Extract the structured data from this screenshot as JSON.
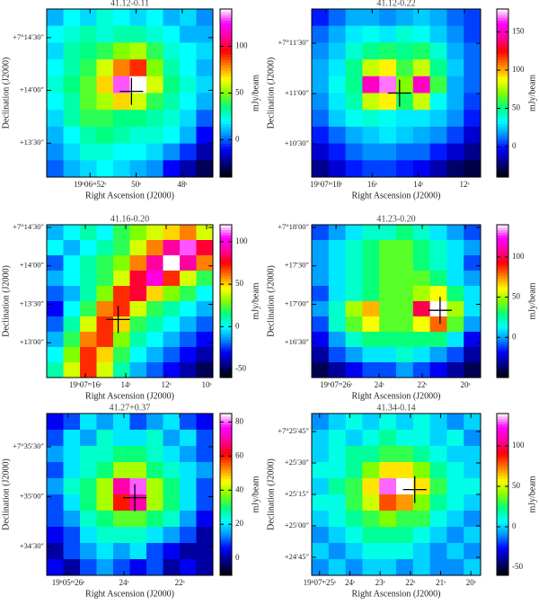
{
  "chart_data": [
    {
      "type": "heatmap",
      "title": "41.12-0.11",
      "xlabel": "Right Ascension (J2000)",
      "ylabel": "Declination (J2000)",
      "colorbar_label": "mJy/beam",
      "xlim": [
        53.88,
        46.67
      ],
      "xticks": [
        {
          "value": 52,
          "label": "19ʰ06ᵐ52ˢ"
        },
        {
          "value": 50,
          "label": "50ˢ"
        },
        {
          "value": 48,
          "label": "48ˢ"
        }
      ],
      "ylim": [
        790.7,
        886.3
      ],
      "yticks": [
        {
          "value": 870,
          "label": "+7°14′30″"
        },
        {
          "value": 840,
          "label": "+14′00″"
        },
        {
          "value": 810,
          "label": "+13′30″"
        }
      ],
      "clim": [
        -40,
        140
      ],
      "cticks": [
        0,
        50,
        100
      ],
      "colormap": [
        "#000000",
        "#000080",
        "#0000ff",
        "#0090ff",
        "#00ffff",
        "#00ff80",
        "#80ff00",
        "#ffff00",
        "#ff8000",
        "#ff0000",
        "#ff00a0",
        "#ff00ff",
        "#ffffff"
      ],
      "values": [
        [
          10,
          20,
          15,
          25,
          20,
          15,
          20,
          10,
          15,
          5
        ],
        [
          20,
          25,
          30,
          25,
          30,
          30,
          25,
          20,
          10,
          10
        ],
        [
          15,
          30,
          35,
          40,
          50,
          55,
          40,
          25,
          20,
          15
        ],
        [
          20,
          30,
          40,
          60,
          80,
          90,
          50,
          30,
          20,
          10
        ],
        [
          25,
          35,
          45,
          70,
          130,
          140,
          60,
          35,
          25,
          15
        ],
        [
          20,
          30,
          45,
          55,
          70,
          60,
          40,
          30,
          20,
          10
        ],
        [
          15,
          30,
          40,
          40,
          35,
          35,
          30,
          25,
          15,
          0
        ],
        [
          10,
          20,
          30,
          35,
          30,
          25,
          25,
          20,
          10,
          -10
        ],
        [
          5,
          15,
          25,
          25,
          20,
          20,
          15,
          5,
          -5,
          -20
        ],
        [
          0,
          10,
          15,
          20,
          15,
          10,
          5,
          -10,
          -20,
          -30
        ]
      ]
    },
    {
      "type": "heatmap",
      "title": "41.12-0.22",
      "xlabel": "Right Ascension (J2000)",
      "ylabel": "Declination (J2000)",
      "colorbar_label": "mJy/beam",
      "xlim": [
        18.62,
        11.3
      ],
      "xticks": [
        {
          "value": 18,
          "label": "19ʰ07ᵐ18ˢ"
        },
        {
          "value": 16,
          "label": "16ˢ"
        },
        {
          "value": 14,
          "label": "14ˢ"
        },
        {
          "value": 12,
          "label": "12ˢ"
        }
      ],
      "ylim": [
        610.2,
        710.4
      ],
      "yticks": [
        {
          "value": 690,
          "label": "+7°11′30″"
        },
        {
          "value": 660,
          "label": "+11′00″"
        },
        {
          "value": 630,
          "label": "+10′30″"
        }
      ],
      "clim": [
        -40,
        180
      ],
      "cticks": [
        0,
        50,
        100,
        150
      ],
      "colormap": [
        "#000000",
        "#000080",
        "#0000ff",
        "#0090ff",
        "#00ffff",
        "#00ff80",
        "#80ff00",
        "#ffff00",
        "#ff8000",
        "#ff0000",
        "#ff00a0",
        "#ff00ff",
        "#ffffff"
      ],
      "values": [
        [
          0,
          10,
          20,
          20,
          15,
          20,
          25,
          20,
          10,
          5
        ],
        [
          10,
          20,
          30,
          35,
          30,
          40,
          35,
          25,
          15,
          5
        ],
        [
          15,
          25,
          40,
          50,
          55,
          50,
          55,
          40,
          20,
          10
        ],
        [
          20,
          30,
          50,
          80,
          90,
          60,
          80,
          50,
          25,
          10
        ],
        [
          20,
          35,
          50,
          150,
          170,
          70,
          150,
          60,
          20,
          10
        ],
        [
          15,
          30,
          45,
          80,
          90,
          55,
          80,
          35,
          20,
          5
        ],
        [
          10,
          25,
          35,
          40,
          35,
          30,
          30,
          25,
          15,
          0
        ],
        [
          0,
          10,
          20,
          25,
          30,
          25,
          20,
          15,
          5,
          -10
        ],
        [
          -10,
          0,
          10,
          15,
          15,
          10,
          10,
          0,
          -10,
          -20
        ],
        [
          -20,
          -10,
          0,
          5,
          5,
          0,
          -5,
          -15,
          -25,
          -30
        ]
      ]
    },
    {
      "type": "heatmap",
      "title": "41.16-0.20",
      "xlabel": "Right Ascension (J2000)",
      "ylabel": "Declination (J2000)",
      "colorbar_label": "mJy/beam",
      "xlim": [
        17.91,
        9.69
      ],
      "xticks": [
        {
          "value": 16,
          "label": "19ʰ07ᵐ16ˢ"
        },
        {
          "value": 14,
          "label": "14ˢ"
        },
        {
          "value": 12,
          "label": "12ˢ"
        },
        {
          "value": 10,
          "label": "10ˢ"
        }
      ],
      "ylim": [
        752.8,
        872.1
      ],
      "yticks": [
        {
          "value": 870,
          "label": "+7°14′30″"
        },
        {
          "value": 840,
          "label": "+14′00″"
        },
        {
          "value": 810,
          "label": "+13′30″"
        },
        {
          "value": 780,
          "label": "+13′00″"
        }
      ],
      "clim": [
        -60,
        120
      ],
      "cticks": [
        -50,
        0,
        50,
        100
      ],
      "colormap": [
        "#000000",
        "#000080",
        "#0000ff",
        "#0090ff",
        "#00ffff",
        "#00ff80",
        "#80ff00",
        "#ffff00",
        "#ff8000",
        "#ff0000",
        "#ff00a0",
        "#ff00ff",
        "#ffffff"
      ],
      "values": [
        [
          -10,
          0,
          10,
          0,
          20,
          30,
          40,
          50,
          60,
          40
        ],
        [
          0,
          -10,
          0,
          10,
          20,
          40,
          60,
          90,
          110,
          80
        ],
        [
          -20,
          0,
          10,
          20,
          30,
          60,
          90,
          120,
          90,
          60
        ],
        [
          -10,
          0,
          10,
          20,
          40,
          80,
          100,
          70,
          40,
          20
        ],
        [
          -20,
          -10,
          10,
          30,
          70,
          80,
          50,
          30,
          20,
          0
        ],
        [
          -30,
          0,
          20,
          60,
          70,
          40,
          20,
          10,
          0,
          -10
        ],
        [
          -20,
          10,
          40,
          70,
          50,
          20,
          10,
          0,
          -10,
          -20
        ],
        [
          -10,
          20,
          60,
          70,
          30,
          10,
          0,
          -10,
          -20,
          -30
        ],
        [
          0,
          30,
          70,
          50,
          20,
          0,
          -10,
          -20,
          -30,
          -40
        ],
        [
          10,
          40,
          70,
          40,
          10,
          -10,
          -20,
          -30,
          -40,
          -50
        ]
      ]
    },
    {
      "type": "heatmap",
      "title": "41.23-0.20",
      "xlabel": "Right Ascension (J2000)",
      "ylabel": "Declination (J2000)",
      "colorbar_label": "mJy/beam",
      "xlim": [
        27.13,
        19.29
      ],
      "xticks": [
        {
          "value": 26,
          "label": "19ʰ07ᵐ26ˢ"
        },
        {
          "value": 24,
          "label": "24ˢ"
        },
        {
          "value": 22,
          "label": "22ˢ"
        },
        {
          "value": 20,
          "label": "20ˢ"
        }
      ],
      "ylim": [
        962.8,
        1082.1
      ],
      "yticks": [
        {
          "value": 1080,
          "label": "+7°18′00″"
        },
        {
          "value": 1050,
          "label": "+17′30″"
        },
        {
          "value": 1020,
          "label": "+17′00″"
        },
        {
          "value": 990,
          "label": "+16′30″"
        }
      ],
      "clim": [
        -50,
        140
      ],
      "cticks": [
        0,
        50,
        100
      ],
      "colormap": [
        "#000000",
        "#000080",
        "#0000ff",
        "#0090ff",
        "#00ffff",
        "#00ff80",
        "#80ff00",
        "#ffff00",
        "#ff8000",
        "#ff0000",
        "#ff00a0",
        "#ff00ff",
        "#ffffff"
      ],
      "values": [
        [
          -10,
          0,
          10,
          20,
          20,
          30,
          20,
          10,
          0,
          -10
        ],
        [
          0,
          10,
          20,
          30,
          40,
          40,
          30,
          20,
          10,
          0
        ],
        [
          0,
          10,
          20,
          30,
          40,
          40,
          30,
          20,
          10,
          -10
        ],
        [
          0,
          10,
          20,
          30,
          40,
          40,
          40,
          30,
          10,
          0
        ],
        [
          -10,
          10,
          20,
          30,
          40,
          40,
          50,
          60,
          30,
          10
        ],
        [
          0,
          20,
          50,
          70,
          40,
          40,
          100,
          140,
          50,
          10
        ],
        [
          -10,
          20,
          40,
          60,
          40,
          40,
          60,
          80,
          40,
          0
        ],
        [
          -20,
          0,
          20,
          30,
          30,
          30,
          30,
          30,
          10,
          -20
        ],
        [
          -30,
          -10,
          0,
          10,
          10,
          20,
          10,
          0,
          -10,
          -30
        ],
        [
          -40,
          -30,
          -20,
          -10,
          -10,
          0,
          -10,
          -20,
          -30,
          -40
        ]
      ]
    },
    {
      "type": "heatmap",
      "title": "41.27+0.37",
      "xlabel": "Right Ascension (J2000)",
      "ylabel": "Declination (J2000)",
      "colorbar_label": "mJy/beam",
      "xlim": [
        26.77,
        20.81
      ],
      "xticks": [
        {
          "value": 26,
          "label": "19ʰ05ᵐ26ˢ"
        },
        {
          "value": 24,
          "label": "24ˢ"
        },
        {
          "value": 22,
          "label": "22ˢ"
        }
      ],
      "ylim": [
        2052.7,
        2150
      ],
      "yticks": [
        {
          "value": 2130,
          "label": "+7°35′30″"
        },
        {
          "value": 2100,
          "label": "+35′00″"
        },
        {
          "value": 2070,
          "label": "+34′30″"
        }
      ],
      "clim": [
        -10,
        85
      ],
      "cticks": [
        0,
        20,
        40,
        60,
        80
      ],
      "colormap": [
        "#000000",
        "#000080",
        "#0000ff",
        "#0090ff",
        "#00ffff",
        "#00ff80",
        "#80ff00",
        "#ffff00",
        "#ff8000",
        "#ff0000",
        "#ff00a0",
        "#ff00ff",
        "#ffffff"
      ],
      "values": [
        [
          5,
          10,
          20,
          15,
          20,
          10,
          15,
          20,
          10,
          5
        ],
        [
          10,
          20,
          15,
          25,
          20,
          20,
          25,
          15,
          20,
          10
        ],
        [
          15,
          20,
          25,
          25,
          30,
          30,
          25,
          20,
          15,
          10
        ],
        [
          10,
          20,
          25,
          30,
          40,
          40,
          30,
          25,
          20,
          15
        ],
        [
          15,
          25,
          30,
          40,
          70,
          80,
          40,
          30,
          20,
          10
        ],
        [
          10,
          20,
          30,
          40,
          60,
          70,
          40,
          30,
          20,
          10
        ],
        [
          10,
          15,
          25,
          30,
          35,
          35,
          30,
          25,
          15,
          5
        ],
        [
          5,
          10,
          20,
          25,
          25,
          25,
          20,
          15,
          10,
          0
        ],
        [
          0,
          10,
          15,
          20,
          15,
          20,
          10,
          5,
          0,
          0
        ],
        [
          5,
          0,
          10,
          15,
          10,
          5,
          10,
          0,
          5,
          0
        ]
      ]
    },
    {
      "type": "heatmap",
      "title": "41.34-0.14",
      "xlabel": "Right Ascension (J2000)",
      "ylabel": "Declination (J2000)",
      "colorbar_label": "mJy/beam",
      "xlim": [
        25.26,
        19.68
      ],
      "xticks": [
        {
          "value": 25,
          "label": "19ʰ07ᵐ25ˢ"
        },
        {
          "value": 24,
          "label": "24ˢ"
        },
        {
          "value": 23,
          "label": "23ˢ"
        },
        {
          "value": 22,
          "label": "22ˢ"
        },
        {
          "value": 21,
          "label": "21ˢ"
        },
        {
          "value": 20,
          "label": "20ˢ"
        }
      ],
      "ylim": [
        1476.4,
        1553.6
      ],
      "yticks": [
        {
          "value": 1545,
          "label": "+7°25′45″"
        },
        {
          "value": 1530,
          "label": "+25′30″"
        },
        {
          "value": 1515,
          "label": "+25′15″"
        },
        {
          "value": 1500,
          "label": "+25′00″"
        },
        {
          "value": 1485,
          "label": "+24′45″"
        }
      ],
      "clim": [
        -60,
        140
      ],
      "cticks": [
        -50,
        0,
        50,
        100
      ],
      "colormap": [
        "#000000",
        "#000080",
        "#0000ff",
        "#0090ff",
        "#00ffff",
        "#00ff80",
        "#80ff00",
        "#ffff00",
        "#ff8000",
        "#ff0000",
        "#ff00a0",
        "#ff00ff",
        "#ffffff"
      ],
      "values": [
        [
          -10,
          0,
          10,
          0,
          10,
          0,
          10,
          0,
          -10,
          0
        ],
        [
          0,
          10,
          0,
          10,
          20,
          10,
          10,
          0,
          10,
          -10
        ],
        [
          0,
          10,
          20,
          20,
          30,
          30,
          20,
          10,
          0,
          0
        ],
        [
          10,
          10,
          20,
          40,
          60,
          60,
          40,
          20,
          10,
          0
        ],
        [
          0,
          20,
          30,
          60,
          130,
          140,
          60,
          30,
          10,
          10
        ],
        [
          10,
          10,
          30,
          50,
          80,
          70,
          40,
          20,
          10,
          0
        ],
        [
          0,
          10,
          20,
          30,
          40,
          30,
          30,
          10,
          0,
          -10
        ],
        [
          -10,
          0,
          10,
          20,
          20,
          20,
          10,
          0,
          -10,
          0
        ],
        [
          0,
          -10,
          0,
          10,
          10,
          10,
          0,
          -10,
          0,
          -10
        ],
        [
          -10,
          0,
          -10,
          0,
          0,
          -10,
          0,
          -10,
          -10,
          0
        ]
      ]
    }
  ]
}
